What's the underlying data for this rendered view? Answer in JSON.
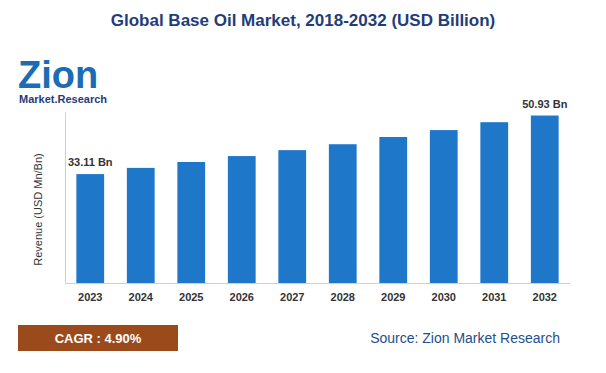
{
  "chart_data": {
    "type": "bar",
    "title": "Global Base Oil Market, 2018-2032 (USD Billion)",
    "y_label": "Revenue (USD Mn/Bn)",
    "categories": [
      "2023",
      "2024",
      "2025",
      "2026",
      "2027",
      "2028",
      "2029",
      "2030",
      "2031",
      "2032"
    ],
    "values": [
      33.11,
      35.0,
      36.8,
      38.6,
      40.4,
      42.2,
      44.4,
      46.5,
      48.9,
      50.93
    ],
    "value_labels": [
      "33.11 Bn",
      null,
      null,
      null,
      null,
      null,
      null,
      null,
      null,
      "50.93 Bn"
    ],
    "color": "#1f77c9",
    "ylim": [
      0,
      52
    ],
    "tick_labels": "x",
    "grid": false,
    "annotations": [
      "Zion",
      "Market.Research",
      "CAGR : 4.90%",
      "Source: Zion Market Research"
    ]
  }
}
